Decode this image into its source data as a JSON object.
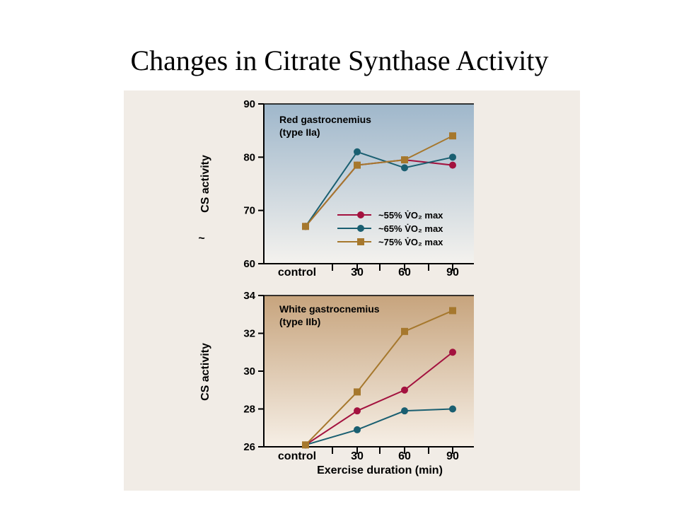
{
  "slide": {
    "title": "Changes in Citrate Synthase Activity"
  },
  "colors": {
    "red": "#a3123f",
    "teal": "#1a5f71",
    "gold": "#a6782d"
  },
  "chart_data": [
    {
      "type": "line",
      "panel_title": "Red gastrocnemius",
      "panel_subtitle": "(type IIa)",
      "ylabel": "CS activity",
      "axis_break": "~",
      "ylim": [
        60,
        90
      ],
      "yticks": [
        "60",
        "70",
        "80",
        "90"
      ],
      "categories": [
        "control",
        "30",
        "60",
        "90"
      ],
      "legend_position": "lower-right",
      "series": [
        {
          "name": "~55% V̇O₂ max",
          "color": "#a3123f",
          "marker": "circle",
          "values": [
            67,
            78.5,
            79.5,
            78.5
          ]
        },
        {
          "name": "~65% V̇O₂ max",
          "color": "#1a5f71",
          "marker": "circle",
          "values": [
            67,
            81,
            78,
            80
          ]
        },
        {
          "name": "~75% V̇O₂ max",
          "color": "#a6782d",
          "marker": "square",
          "values": [
            67,
            78.5,
            79.5,
            84
          ]
        }
      ]
    },
    {
      "type": "line",
      "panel_title": "White gastrocnemius",
      "panel_subtitle": "(type IIb)",
      "ylabel": "CS activity",
      "xlabel": "Exercise duration (min)",
      "ylim": [
        26,
        34
      ],
      "yticks": [
        "26",
        "28",
        "30",
        "32",
        "34"
      ],
      "categories": [
        "control",
        "30",
        "60",
        "90"
      ],
      "series": [
        {
          "color": "#a3123f",
          "marker": "circle",
          "values": [
            26.1,
            27.9,
            29,
            31
          ]
        },
        {
          "color": "#1a5f71",
          "marker": "circle",
          "values": [
            26.1,
            26.9,
            27.9,
            28
          ]
        },
        {
          "color": "#a6782d",
          "marker": "square",
          "values": [
            26.1,
            28.9,
            32.1,
            33.2
          ]
        }
      ]
    }
  ]
}
